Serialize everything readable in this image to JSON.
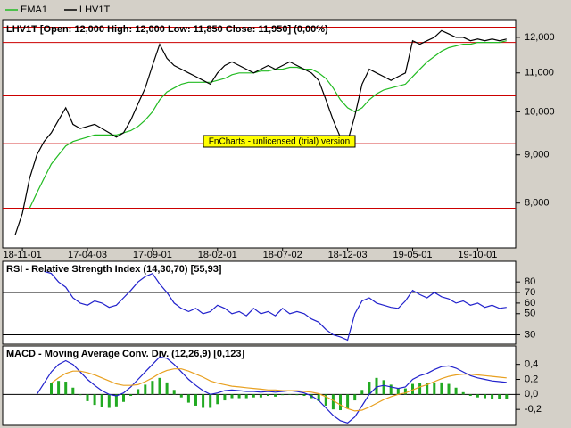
{
  "chart_data": [
    {
      "type": "line",
      "title": "LHV1T [Open: 12,000  High: 12,000  Low: 11,850  Close: 11,950] (0,00%)",
      "watermark": "FnCharts - unlicensed (trial) version",
      "log": true,
      "ylim": [
        7200,
        12450
      ],
      "yticks": [
        {
          "value": 8000,
          "label": "8,000"
        },
        {
          "value": 9000,
          "label": "9,000"
        },
        {
          "value": 10000,
          "label": "10,000"
        },
        {
          "value": 11000,
          "label": "11,000"
        },
        {
          "value": 12000,
          "label": "12,000"
        }
      ],
      "hlines": [
        12300,
        11850,
        10400,
        9250,
        7900
      ],
      "hline_color": "#cc0000",
      "legend": "top-left",
      "categories": [
        null,
        "18-11-01",
        null,
        null,
        null,
        null,
        null,
        null,
        null,
        null,
        "17-04-03",
        null,
        null,
        null,
        null,
        null,
        null,
        null,
        null,
        "17-09-01",
        null,
        null,
        null,
        null,
        null,
        null,
        null,
        null,
        "18-02-01",
        null,
        null,
        null,
        null,
        null,
        null,
        null,
        null,
        "18-07-02",
        null,
        null,
        null,
        null,
        null,
        null,
        null,
        null,
        "18-12-03",
        null,
        null,
        null,
        null,
        null,
        null,
        null,
        null,
        "19-05-01",
        null,
        null,
        null,
        null,
        null,
        null,
        null,
        null,
        "19-10-01",
        null,
        null,
        null,
        null
      ],
      "series": [
        {
          "name": "EMA1",
          "color": "#22bb22",
          "values": [
            null,
            null,
            7900,
            8200,
            8500,
            8800,
            9000,
            9200,
            9300,
            9350,
            9400,
            9450,
            9450,
            9450,
            9450,
            9500,
            9550,
            9650,
            9800,
            10000,
            10300,
            10500,
            10600,
            10700,
            10750,
            10750,
            10750,
            10750,
            10800,
            10850,
            10950,
            11000,
            11000,
            11000,
            11050,
            11050,
            11100,
            11100,
            11150,
            11150,
            11100,
            11100,
            11000,
            10850,
            10600,
            10300,
            10100,
            10000,
            10100,
            10300,
            10450,
            10550,
            10600,
            10650,
            10700,
            10900,
            11100,
            11300,
            11450,
            11600,
            11700,
            11750,
            11800,
            11800,
            11850,
            11850,
            11850,
            11850,
            11900
          ]
        },
        {
          "name": "LHV1T",
          "color": "#000000",
          "values": [
            7400,
            7800,
            8500,
            9000,
            9300,
            9500,
            9800,
            10100,
            9700,
            9600,
            9650,
            9700,
            9600,
            9500,
            9400,
            9500,
            9800,
            10200,
            10600,
            11200,
            11800,
            11400,
            11200,
            11100,
            11000,
            10900,
            10800,
            10700,
            11000,
            11200,
            11300,
            11200,
            11100,
            11000,
            11100,
            11200,
            11100,
            11200,
            11300,
            11200,
            11100,
            11000,
            10800,
            10300,
            9800,
            9400,
            9300,
            9900,
            10700,
            11100,
            11000,
            10900,
            10800,
            10900,
            11000,
            11900,
            11800,
            11900,
            12000,
            12200,
            12100,
            12000,
            12000,
            11900,
            11950,
            11900,
            11950,
            11900,
            11950
          ]
        }
      ]
    },
    {
      "type": "line",
      "title": "RSI - Relative Strength Index (14,30,70) [55,93]",
      "ylim": [
        22,
        97
      ],
      "yticks": [
        30,
        50,
        60,
        70,
        80
      ],
      "levels": [
        30,
        70
      ],
      "series": [
        {
          "color": "#2222cc",
          "values": [
            null,
            null,
            null,
            null,
            90,
            88,
            80,
            75,
            65,
            60,
            58,
            62,
            60,
            56,
            58,
            65,
            72,
            80,
            85,
            88,
            78,
            70,
            60,
            55,
            52,
            55,
            50,
            52,
            58,
            55,
            50,
            52,
            48,
            55,
            50,
            52,
            48,
            55,
            50,
            52,
            50,
            45,
            42,
            35,
            30,
            28,
            25,
            50,
            62,
            65,
            60,
            58,
            56,
            55,
            62,
            72,
            68,
            65,
            70,
            66,
            64,
            60,
            62,
            58,
            60,
            56,
            58,
            55,
            56
          ]
        }
      ]
    },
    {
      "type": "line",
      "title": "MACD - Moving Average Conv. Div. (12,26,9) [0,123]",
      "ylim": [
        -0.4,
        0.61
      ],
      "yticks": [
        {
          "value": -0.2,
          "label": "-0,2"
        },
        {
          "value": 0,
          "label": "0,0"
        },
        {
          "value": 0.2,
          "label": "0,2"
        },
        {
          "value": 0.4,
          "label": "0,4"
        }
      ],
      "levels": [
        0
      ],
      "series": [
        {
          "type": "bar",
          "color": "#22aa22",
          "values": [
            null,
            null,
            null,
            null,
            null,
            0.15,
            0.18,
            0.17,
            0.09,
            -0.01,
            -0.09,
            -0.14,
            -0.17,
            -0.18,
            -0.16,
            -0.1,
            -0.02,
            0.07,
            0.13,
            0.18,
            0.22,
            0.16,
            0.06,
            -0.04,
            -0.11,
            -0.15,
            -0.18,
            -0.18,
            -0.13,
            -0.08,
            -0.05,
            -0.05,
            -0.05,
            -0.04,
            -0.04,
            -0.02,
            -0.03,
            -0.01,
            0,
            -0.01,
            -0.02,
            -0.05,
            -0.09,
            -0.15,
            -0.2,
            -0.21,
            -0.19,
            -0.08,
            0.06,
            0.17,
            0.22,
            0.19,
            0.13,
            0.08,
            0.08,
            0.14,
            0.15,
            0.15,
            0.16,
            0.16,
            0.14,
            0.09,
            0.03,
            -0.02,
            -0.04,
            -0.05,
            -0.06,
            -0.06,
            -0.06
          ]
        },
        {
          "color": "#2222cc",
          "values": [
            null,
            null,
            null,
            0,
            0.15,
            0.3,
            0.4,
            0.45,
            0.4,
            0.3,
            0.2,
            0.12,
            0.05,
            0,
            -0.02,
            0.02,
            0.1,
            0.2,
            0.3,
            0.4,
            0.5,
            0.48,
            0.4,
            0.3,
            0.2,
            0.12,
            0.05,
            0,
            0.02,
            0.05,
            0.06,
            0.05,
            0.04,
            0.04,
            0.03,
            0.04,
            0.03,
            0.04,
            0.05,
            0.04,
            0.02,
            -0.02,
            -0.08,
            -0.18,
            -0.28,
            -0.35,
            -0.38,
            -0.3,
            -0.15,
            0,
            0.1,
            0.12,
            0.1,
            0.08,
            0.1,
            0.2,
            0.25,
            0.28,
            0.33,
            0.37,
            0.38,
            0.35,
            0.3,
            0.25,
            0.22,
            0.2,
            0.18,
            0.17,
            0.16
          ]
        },
        {
          "color": "#e8a020",
          "values": [
            null,
            null,
            null,
            null,
            null,
            0.15,
            0.22,
            0.28,
            0.31,
            0.31,
            0.29,
            0.26,
            0.22,
            0.18,
            0.14,
            0.12,
            0.12,
            0.13,
            0.17,
            0.22,
            0.28,
            0.32,
            0.34,
            0.34,
            0.31,
            0.27,
            0.23,
            0.18,
            0.15,
            0.13,
            0.11,
            0.1,
            0.09,
            0.08,
            0.07,
            0.06,
            0.06,
            0.05,
            0.05,
            0.05,
            0.04,
            0.03,
            0.01,
            -0.03,
            -0.08,
            -0.14,
            -0.19,
            -0.22,
            -0.21,
            -0.17,
            -0.12,
            -0.07,
            -0.03,
            0,
            0.02,
            0.06,
            0.1,
            0.13,
            0.17,
            0.21,
            0.24,
            0.26,
            0.27,
            0.27,
            0.26,
            0.25,
            0.24,
            0.23,
            0.22
          ]
        }
      ]
    }
  ]
}
